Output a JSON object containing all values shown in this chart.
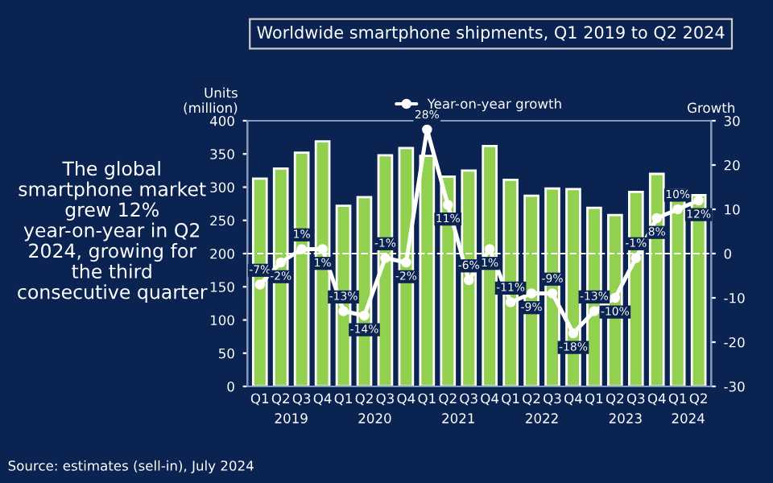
{
  "chart_data": {
    "type": "bar",
    "title": "Worldwide smartphone shipments, Q1 2019 to Q2 2024",
    "categories": [
      "Q1",
      "Q2",
      "Q3",
      "Q4",
      "Q1",
      "Q2",
      "Q3",
      "Q4",
      "Q1",
      "Q2",
      "Q3",
      "Q4",
      "Q1",
      "Q2",
      "Q3",
      "Q4",
      "Q1",
      "Q2",
      "Q3",
      "Q4",
      "Q1",
      "Q2"
    ],
    "series": [
      {
        "color": "#92d050",
        "values": [
          313,
          328,
          352,
          369,
          272,
          285,
          348,
          359,
          347,
          316,
          325,
          362,
          311,
          287,
          298,
          297,
          269,
          258,
          293,
          320,
          296,
          288
        ]
      },
      {
        "type": "line",
        "axis": "y2",
        "name": "Year-on-year growth",
        "color": "#ffffff",
        "marker": "circle",
        "values": [
          -7,
          -2,
          1,
          1,
          -13,
          -14,
          -1,
          -2,
          28,
          11,
          -6,
          1,
          -11,
          -9,
          -9,
          -18,
          -13,
          -10,
          -1,
          8,
          10,
          12
        ],
        "value_labels": [
          "-7%",
          "-2%",
          "1%",
          "1%",
          "-13%",
          "-14%",
          "-1%",
          "-2%",
          "28%",
          "11%",
          "-6%",
          "1%",
          "-11%",
          "-9%",
          "-9%",
          "-18%",
          "-13%",
          "-10%",
          "-1%",
          "8%",
          "10%",
          "12%"
        ]
      }
    ],
    "ylabel": "Units\n(million)",
    "y2label": "Growth",
    "ylim": [
      0,
      400
    ],
    "yticks": [
      0,
      50,
      100,
      150,
      200,
      250,
      300,
      350,
      400
    ],
    "y2lim": [
      -30,
      30
    ],
    "y2ticks": [
      -30,
      -20,
      -10,
      0,
      10,
      20,
      30
    ],
    "ref_lines": [
      {
        "axis": "y2",
        "value": 0,
        "color": "#ffffff",
        "line_style": "dashed"
      }
    ],
    "legend": "top",
    "annotations": [
      "The global smartphone market grew 12% year-on-year in Q2 2024, growing for the third consecutive quarter",
      "Source: estimates (sell-in), July 2024",
      "2019",
      "2020",
      "2021",
      "2022",
      "2023",
      "2024"
    ]
  }
}
